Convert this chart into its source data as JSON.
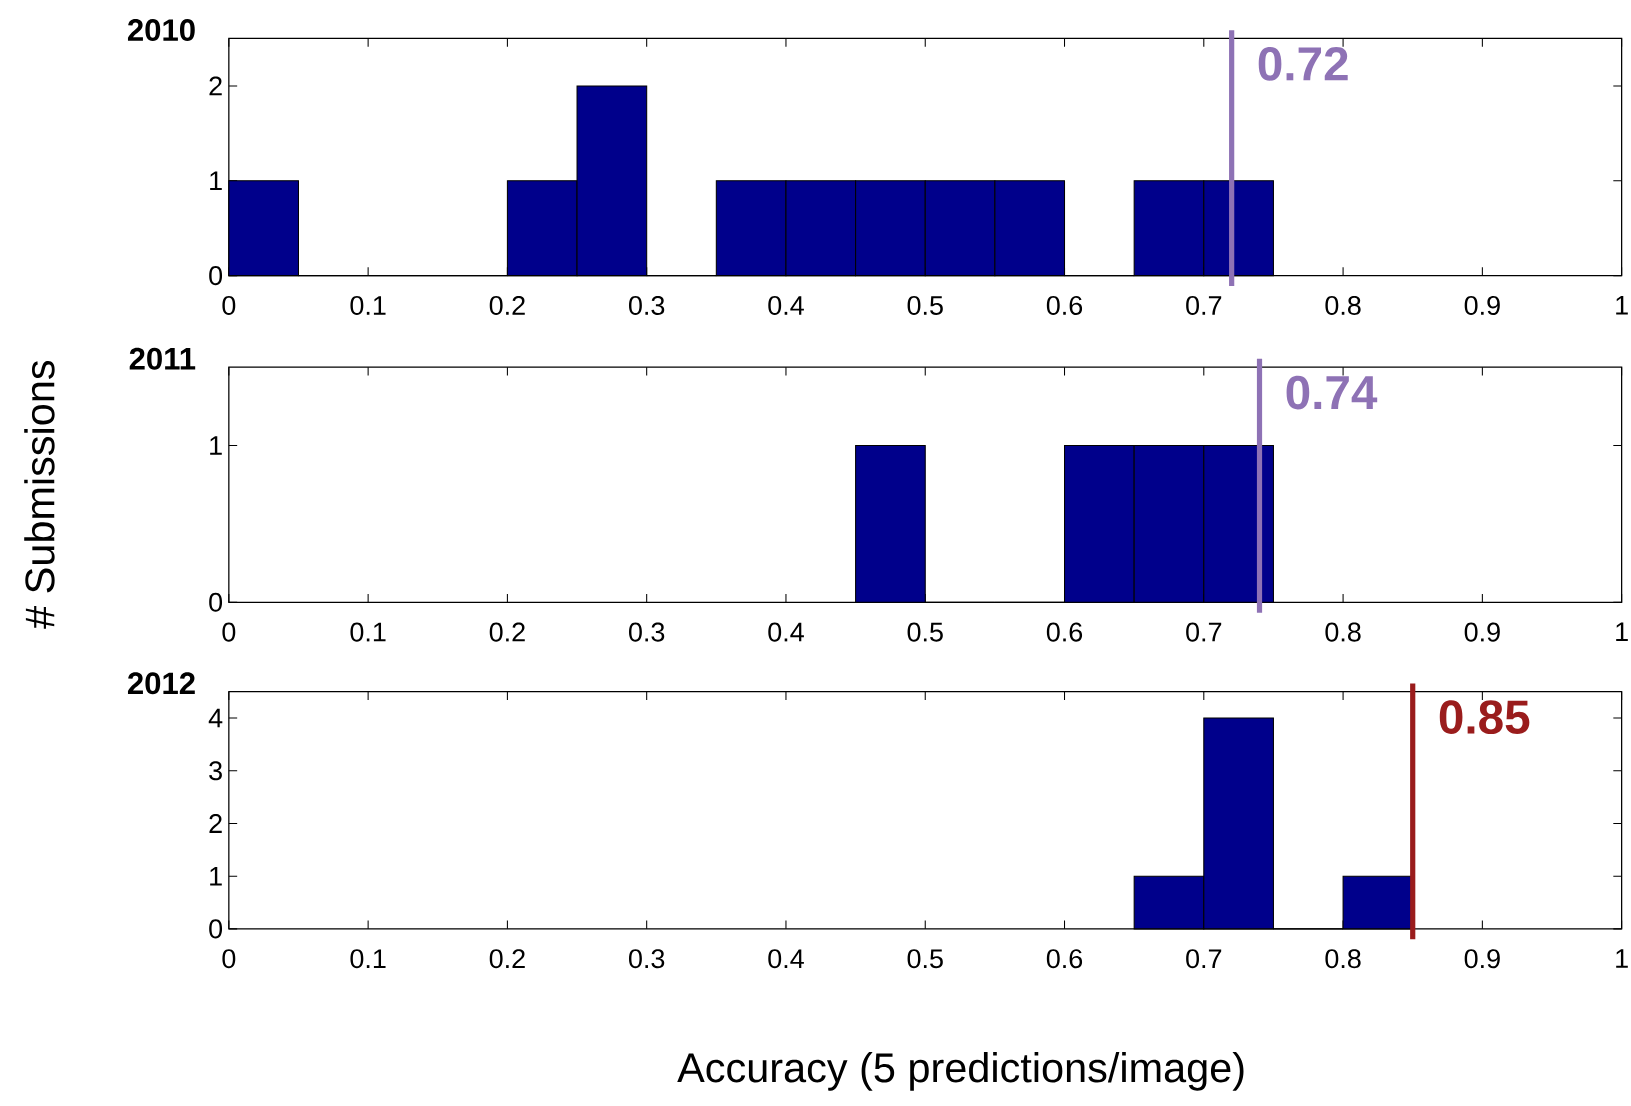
{
  "chart_data": [
    {
      "type": "histogram",
      "title": "2010",
      "bins": [
        0,
        0.05,
        0.1,
        0.15,
        0.2,
        0.25,
        0.3,
        0.35,
        0.4,
        0.45,
        0.5,
        0.55,
        0.6,
        0.65,
        0.7,
        0.75
      ],
      "values": [
        1,
        0,
        0,
        0,
        1,
        2,
        0,
        1,
        1,
        1,
        1,
        1,
        0,
        1,
        1
      ],
      "color": "#00008b",
      "xlim": [
        0,
        1
      ],
      "ylim": [
        0,
        2.5
      ],
      "xticks": [
        0,
        0.1,
        0.2,
        0.3,
        0.4,
        0.5,
        0.6,
        0.7,
        0.8,
        0.9,
        1
      ],
      "yticks": [
        0,
        1,
        2
      ],
      "ref_lines": [
        {
          "axis": "x",
          "value": 0.72,
          "label": "0.72",
          "color": "#8e72b5"
        }
      ]
    },
    {
      "type": "histogram",
      "title": "2011",
      "ylabel": "# Submissions",
      "bins": [
        0.45,
        0.5,
        0.55,
        0.6,
        0.65,
        0.7,
        0.75
      ],
      "values": [
        1,
        0,
        0,
        1,
        1,
        1
      ],
      "color": "#00008b",
      "xlim": [
        0,
        1
      ],
      "ylim": [
        0,
        1.5
      ],
      "xticks": [
        0,
        0.1,
        0.2,
        0.3,
        0.4,
        0.5,
        0.6,
        0.7,
        0.8,
        0.9,
        1
      ],
      "yticks": [
        0,
        1
      ],
      "ref_lines": [
        {
          "axis": "x",
          "value": 0.74,
          "label": "0.74",
          "color": "#8e72b5"
        }
      ]
    },
    {
      "type": "histogram",
      "title": "2012",
      "xlabel": "Accuracy (5 predictions/image)",
      "bins": [
        0.65,
        0.7,
        0.75,
        0.8,
        0.85
      ],
      "values": [
        1,
        4,
        0,
        1
      ],
      "color": "#00008b",
      "xlim": [
        0,
        1
      ],
      "ylim": [
        0,
        4.5
      ],
      "xticks": [
        0,
        0.1,
        0.2,
        0.3,
        0.4,
        0.5,
        0.6,
        0.7,
        0.8,
        0.9,
        1
      ],
      "yticks": [
        0,
        1,
        2,
        3,
        4
      ],
      "ref_lines": [
        {
          "axis": "x",
          "value": 0.85,
          "label": "0.85",
          "color": "#9a1c1c"
        }
      ]
    }
  ]
}
